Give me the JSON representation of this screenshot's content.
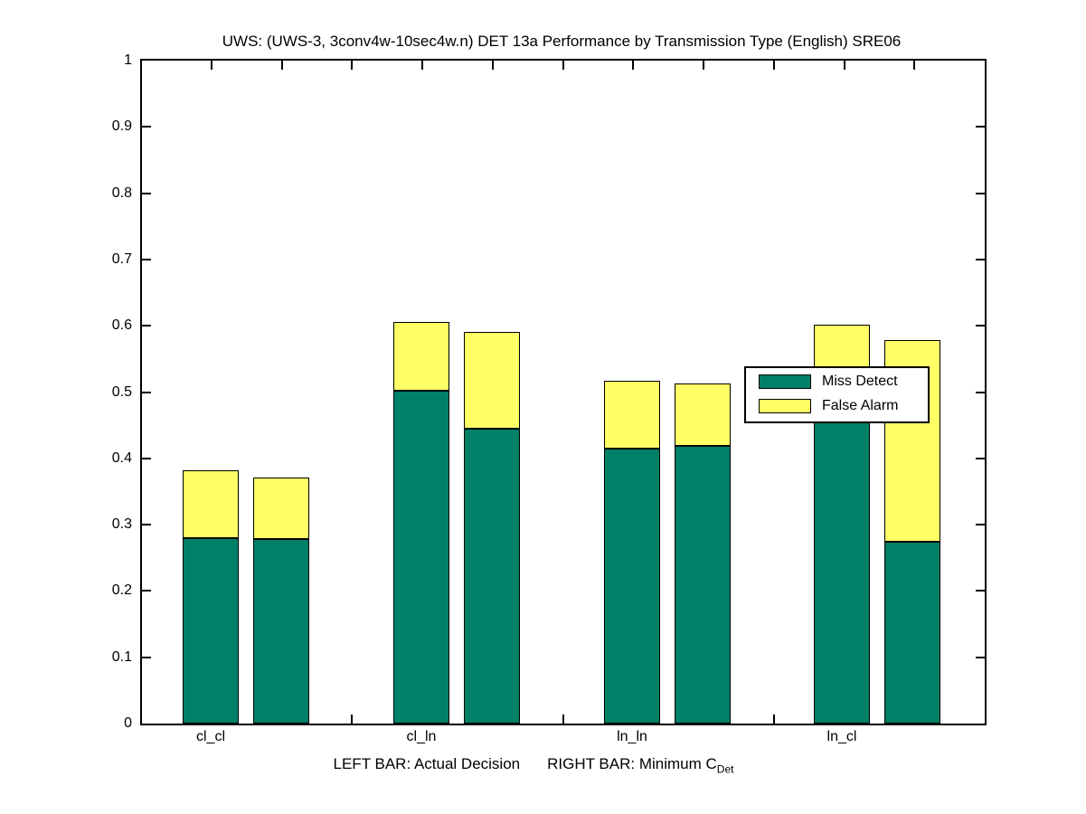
{
  "chart_data": {
    "type": "bar",
    "variant": "stacked-pairs",
    "title": "UWS: (UWS-3, 3conv4w-10sec4w.n) DET 13a Performance by Transmission Type (English) SRE06",
    "categories": [
      "cl_cl",
      "cl_ln",
      "ln_ln",
      "ln_cl"
    ],
    "xlabel_left": "LEFT BAR: Actual Decision",
    "xlabel_right": "RIGHT BAR: Minimum C",
    "xlabel_subscript": "Det",
    "ylim": [
      0,
      1
    ],
    "ytick_labels": [
      "0",
      "0.1",
      "0.2",
      "0.3",
      "0.4",
      "0.5",
      "0.6",
      "0.7",
      "0.8",
      "0.9",
      "1"
    ],
    "grid": false,
    "legend_position": "middle-right-inside",
    "legend": [
      {
        "label": "Miss Detect",
        "color": "#008066"
      },
      {
        "label": "False Alarm",
        "color": "#FFFF66"
      }
    ],
    "groups": [
      {
        "category": "cl_cl",
        "actual": {
          "miss": 0.28,
          "false_alarm": 0.102
        },
        "minimum": {
          "miss": 0.278,
          "false_alarm": 0.093
        }
      },
      {
        "category": "cl_ln",
        "actual": {
          "miss": 0.502,
          "false_alarm": 0.104
        },
        "minimum": {
          "miss": 0.445,
          "false_alarm": 0.146
        }
      },
      {
        "category": "ln_ln",
        "actual": {
          "miss": 0.415,
          "false_alarm": 0.103
        },
        "minimum": {
          "miss": 0.419,
          "false_alarm": 0.094
        }
      },
      {
        "category": "ln_cl",
        "actual": {
          "miss": 0.49,
          "false_alarm": 0.112
        },
        "minimum": {
          "miss": 0.274,
          "false_alarm": 0.304
        }
      }
    ]
  }
}
